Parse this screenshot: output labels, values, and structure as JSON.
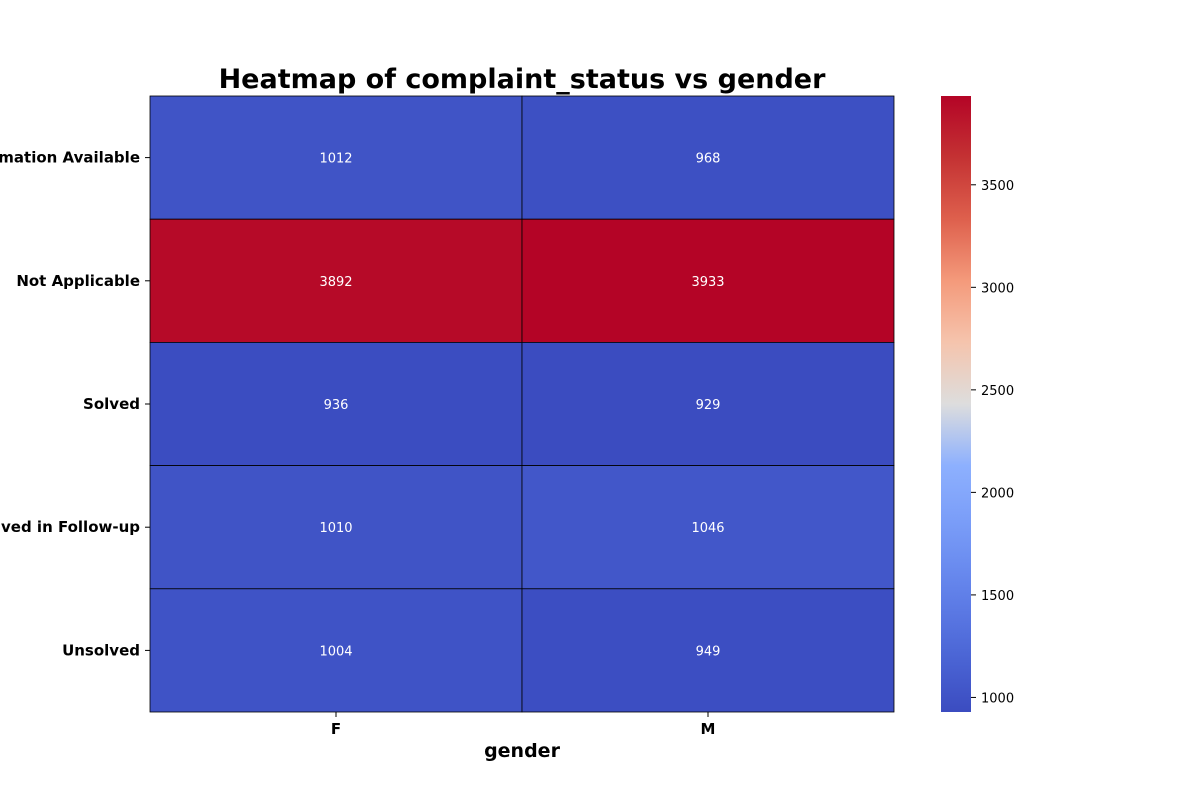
{
  "chart_data": {
    "type": "heatmap",
    "title": "Heatmap of complaint_status vs gender",
    "xlabel": "gender",
    "ylabel": "",
    "x_categories": [
      "F",
      "M"
    ],
    "y_categories": [
      "Information Available",
      "Not Applicable",
      "Solved",
      "Solved in Follow-up",
      "Unsolved"
    ],
    "values": [
      [
        1012,
        968
      ],
      [
        3892,
        3933
      ],
      [
        936,
        929
      ],
      [
        1010,
        1046
      ],
      [
        1004,
        949
      ]
    ],
    "annotations": true,
    "colormap": "coolwarm",
    "color_range": [
      929,
      3933
    ],
    "colorbar_ticks": [
      1000,
      1500,
      2000,
      2500,
      3000,
      3500
    ],
    "colorbar_tick_labels": [
      "1000",
      "1500",
      "2000",
      "2500",
      "3000",
      "3500"
    ],
    "grid": false,
    "cell_border_color": "#000000"
  }
}
